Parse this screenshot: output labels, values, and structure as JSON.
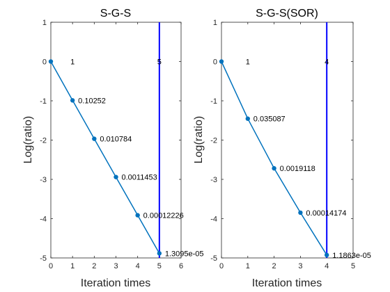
{
  "chart_data": [
    {
      "type": "line",
      "title": "S-G-S",
      "xlabel": "Iteration times",
      "ylabel": "Log(ratio)",
      "xlim": [
        0,
        6
      ],
      "ylim": [
        -5,
        1
      ],
      "xticks": [
        "0",
        "1",
        "2",
        "3",
        "4",
        "5",
        "6"
      ],
      "yticks": [
        "1",
        "0",
        "-1",
        "-2",
        "-3",
        "-4",
        "-5"
      ],
      "grid": false,
      "x": [
        0,
        1,
        2,
        3,
        4,
        5
      ],
      "y": [
        0,
        -0.989,
        -1.967,
        -2.941,
        -3.913,
        -4.883
      ],
      "point_labels": [
        "",
        "0.10252",
        "0.010784",
        "0.0011453",
        "0.00012226",
        "1.3095e-05"
      ],
      "vline_x": 5,
      "top_labels": [
        {
          "x": 1,
          "text": "1"
        },
        {
          "x": 5,
          "text": "5"
        }
      ],
      "line_color": "#0072BD",
      "vline_color": "#0000FF"
    },
    {
      "type": "line",
      "title": "S-G-S(SOR)",
      "xlabel": "Iteration times",
      "ylabel": "Log(ratio)",
      "xlim": [
        0,
        5
      ],
      "ylim": [
        -5,
        1
      ],
      "xticks": [
        "0",
        "1",
        "2",
        "3",
        "4",
        "5"
      ],
      "yticks": [
        "1",
        "0",
        "-1",
        "-2",
        "-3",
        "-4",
        "-5"
      ],
      "grid": false,
      "x": [
        0,
        1,
        2,
        3,
        4
      ],
      "y": [
        0,
        -1.455,
        -2.719,
        -3.848,
        -4.926
      ],
      "point_labels": [
        "",
        "0.035087",
        "0.0019118",
        "0.00014174",
        "1.1863e-05"
      ],
      "vline_x": 4,
      "top_labels": [
        {
          "x": 1,
          "text": "1"
        },
        {
          "x": 4,
          "text": "4"
        }
      ],
      "line_color": "#0072BD",
      "vline_color": "#0000FF"
    }
  ]
}
